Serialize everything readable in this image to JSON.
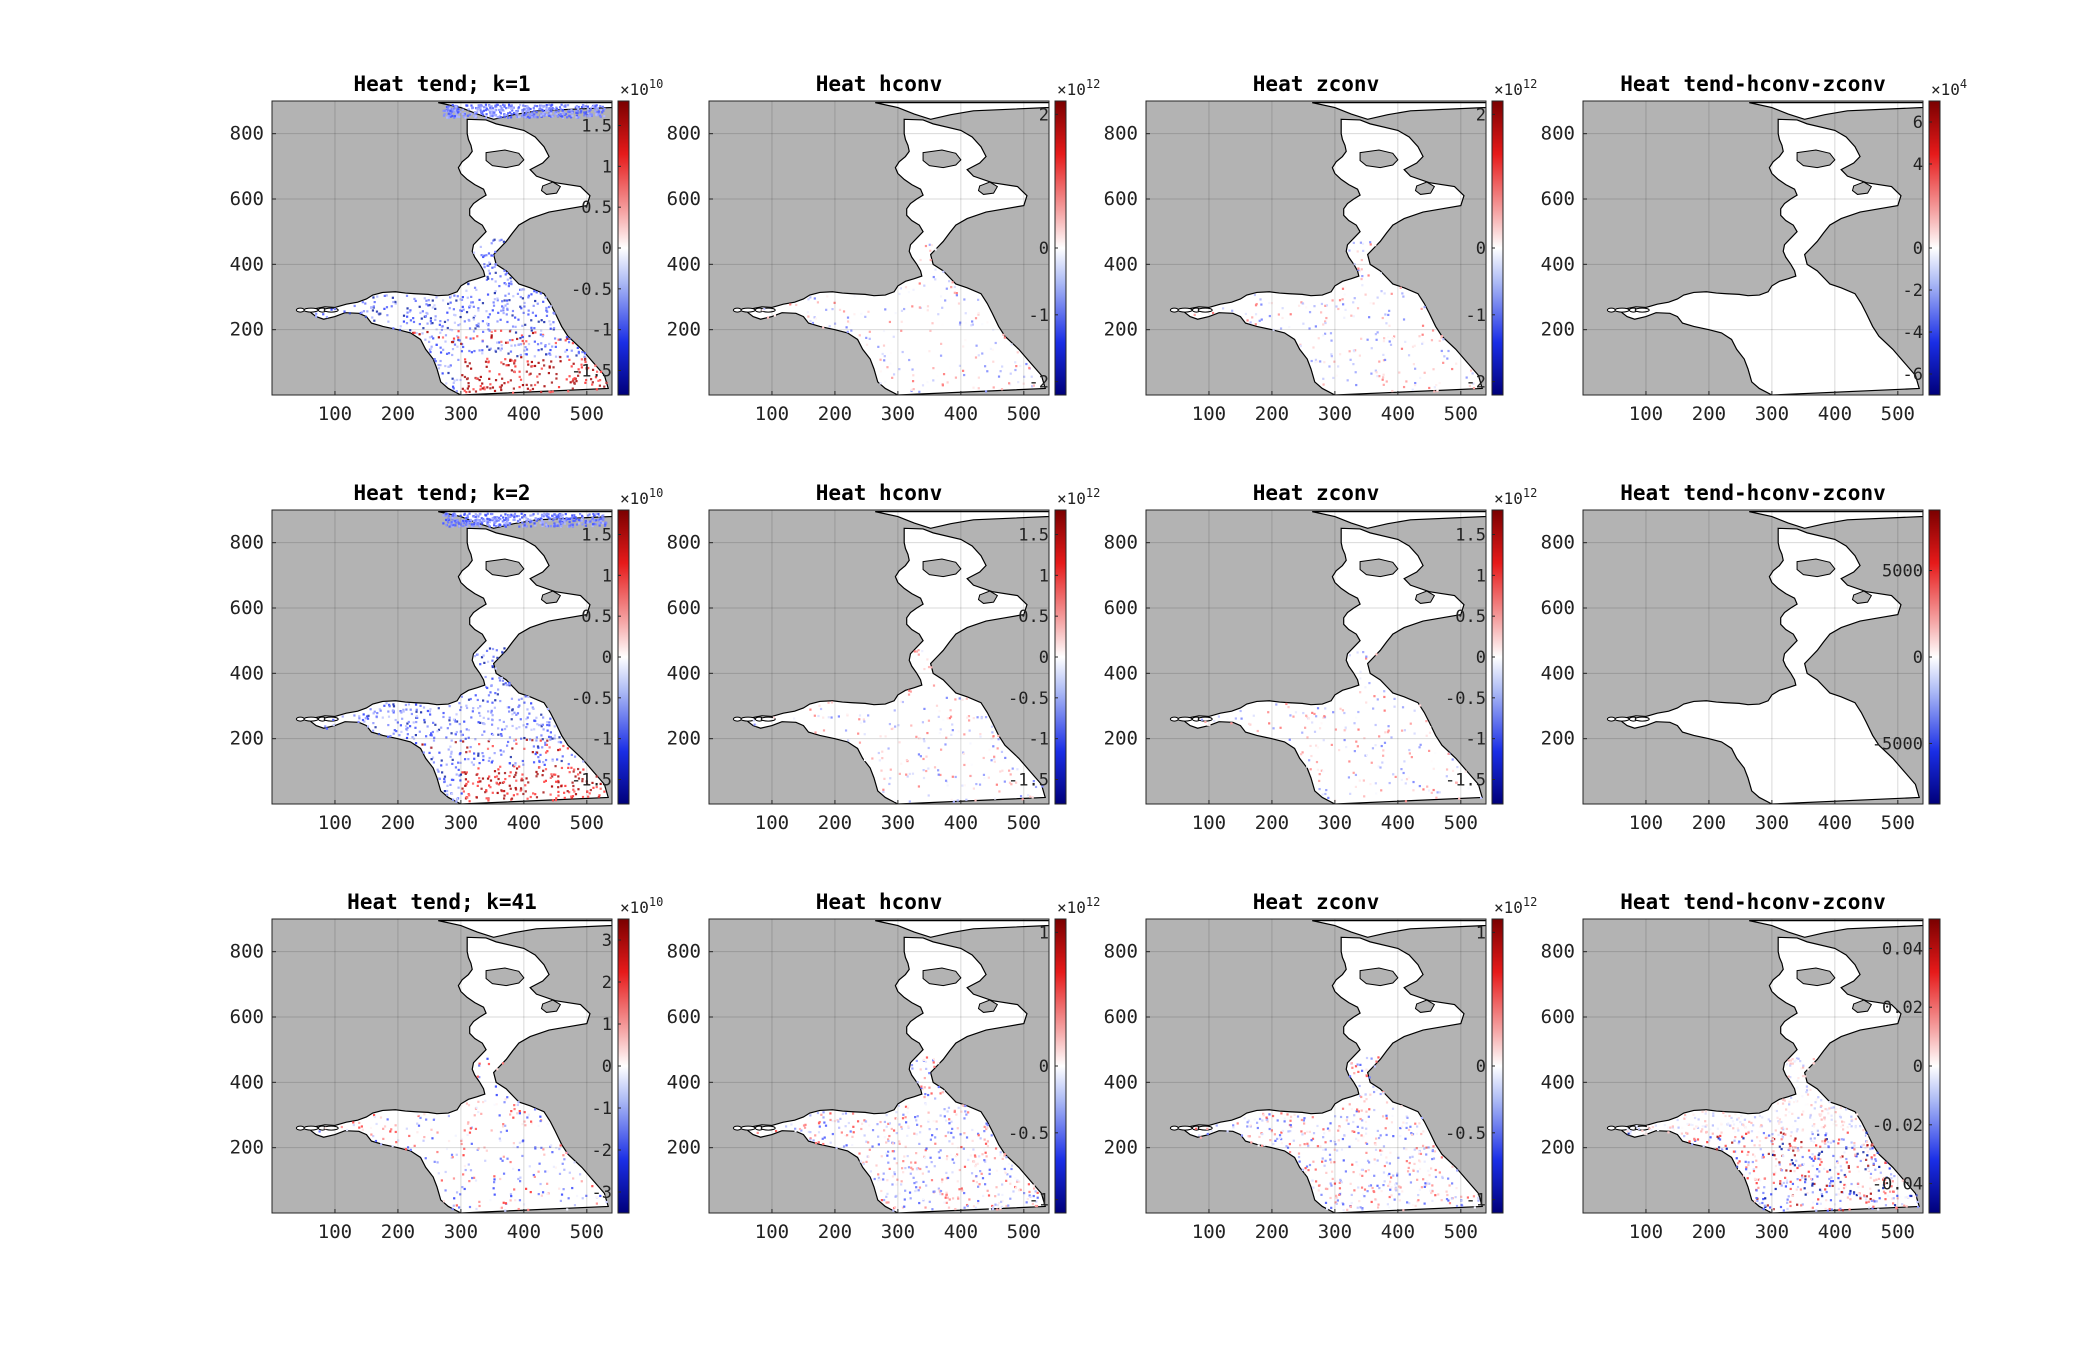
{
  "chart_data": [
    {
      "type": "heatmap",
      "title": "Heat tend; k=1",
      "xticks": [
        100,
        200,
        300,
        400,
        500
      ],
      "yticks": [
        200,
        400,
        600,
        800
      ],
      "xlim": [
        1,
        540
      ],
      "ylim": [
        1,
        900
      ],
      "colorbar": {
        "ticks": [
          "1.5",
          "1",
          "0.5",
          "0",
          "-0.5",
          "-1",
          "-1.5"
        ],
        "values": [
          1.5,
          1,
          0.5,
          0,
          -0.5,
          -1,
          -1.5
        ],
        "range": [
          -1.8,
          1.8
        ],
        "exponent_base": "×10",
        "exponent": "10"
      },
      "colormap": "blue-white-red",
      "pattern": "strong",
      "background": "gray"
    },
    {
      "type": "heatmap",
      "title": "Heat hconv",
      "xticks": [
        100,
        200,
        300,
        400,
        500
      ],
      "yticks": [
        200,
        400,
        600,
        800
      ],
      "xlim": [
        1,
        540
      ],
      "ylim": [
        1,
        900
      ],
      "colorbar": {
        "ticks": [
          "2",
          "0",
          "-1",
          "-2"
        ],
        "values": [
          2,
          0,
          -1,
          -2
        ],
        "range": [
          -2.2,
          2.2
        ],
        "exponent_base": "×10",
        "exponent": "12"
      },
      "colormap": "blue-white-red",
      "pattern": "faint",
      "background": "gray"
    },
    {
      "type": "heatmap",
      "title": "Heat zconv",
      "xticks": [
        100,
        200,
        300,
        400,
        500
      ],
      "yticks": [
        200,
        400,
        600,
        800
      ],
      "xlim": [
        1,
        540
      ],
      "ylim": [
        1,
        900
      ],
      "colorbar": {
        "ticks": [
          "2",
          "0",
          "-1",
          "-2"
        ],
        "values": [
          2,
          0,
          -1,
          -2
        ],
        "range": [
          -2.2,
          2.2
        ],
        "exponent_base": "×10",
        "exponent": "12"
      },
      "colormap": "blue-white-red",
      "pattern": "faint",
      "background": "gray"
    },
    {
      "type": "heatmap",
      "title": "Heat tend-hconv-zconv",
      "xticks": [
        100,
        200,
        300,
        400,
        500
      ],
      "yticks": [
        200,
        400,
        600,
        800
      ],
      "xlim": [
        1,
        540
      ],
      "ylim": [
        1,
        900
      ],
      "colorbar": {
        "ticks": [
          "6",
          "4",
          "0",
          "-2",
          "-4",
          "-6"
        ],
        "values": [
          6,
          4,
          0,
          -2,
          -4,
          -6
        ],
        "range": [
          -7,
          7
        ],
        "exponent_base": "×10",
        "exponent": "4"
      },
      "colormap": "blue-white-red",
      "pattern": "none",
      "background": "gray"
    },
    {
      "type": "heatmap",
      "title": "Heat tend; k=2",
      "xticks": [
        100,
        200,
        300,
        400,
        500
      ],
      "yticks": [
        200,
        400,
        600,
        800
      ],
      "xlim": [
        1,
        540
      ],
      "ylim": [
        1,
        900
      ],
      "colorbar": {
        "ticks": [
          "1.5",
          "1",
          "0.5",
          "0",
          "-0.5",
          "-1",
          "-1.5"
        ],
        "values": [
          1.5,
          1,
          0.5,
          0,
          -0.5,
          -1,
          -1.5
        ],
        "range": [
          -1.8,
          1.8
        ],
        "exponent_base": "×10",
        "exponent": "10"
      },
      "colormap": "blue-white-red",
      "pattern": "strong",
      "background": "gray"
    },
    {
      "type": "heatmap",
      "title": "Heat hconv",
      "xticks": [
        100,
        200,
        300,
        400,
        500
      ],
      "yticks": [
        200,
        400,
        600,
        800
      ],
      "xlim": [
        1,
        540
      ],
      "ylim": [
        1,
        900
      ],
      "colorbar": {
        "ticks": [
          "1.5",
          "1",
          "0.5",
          "0",
          "-0.5",
          "-1",
          "-1.5"
        ],
        "values": [
          1.5,
          1,
          0.5,
          0,
          -0.5,
          -1,
          -1.5
        ],
        "range": [
          -1.8,
          1.8
        ],
        "exponent_base": "×10",
        "exponent": "12"
      },
      "colormap": "blue-white-red",
      "pattern": "faint",
      "background": "gray"
    },
    {
      "type": "heatmap",
      "title": "Heat zconv",
      "xticks": [
        100,
        200,
        300,
        400,
        500
      ],
      "yticks": [
        200,
        400,
        600,
        800
      ],
      "xlim": [
        1,
        540
      ],
      "ylim": [
        1,
        900
      ],
      "colorbar": {
        "ticks": [
          "1.5",
          "1",
          "0.5",
          "0",
          "-0.5",
          "-1",
          "-1.5"
        ],
        "values": [
          1.5,
          1,
          0.5,
          0,
          -0.5,
          -1,
          -1.5
        ],
        "range": [
          -1.8,
          1.8
        ],
        "exponent_base": "×10",
        "exponent": "12"
      },
      "colormap": "blue-white-red",
      "pattern": "faint",
      "background": "gray"
    },
    {
      "type": "heatmap",
      "title": "Heat tend-hconv-zconv",
      "xticks": [
        100,
        200,
        300,
        400,
        500
      ],
      "yticks": [
        200,
        400,
        600,
        800
      ],
      "xlim": [
        1,
        540
      ],
      "ylim": [
        1,
        900
      ],
      "colorbar": {
        "ticks": [
          "5000",
          "0",
          "-5000"
        ],
        "values": [
          5000,
          0,
          -5000
        ],
        "range": [
          -8500,
          8500
        ],
        "exponent_base": "",
        "exponent": ""
      },
      "colormap": "blue-white-red",
      "pattern": "none",
      "background": "gray"
    },
    {
      "type": "heatmap",
      "title": "Heat tend; k=41",
      "xticks": [
        100,
        200,
        300,
        400,
        500
      ],
      "yticks": [
        200,
        400,
        600,
        800
      ],
      "xlim": [
        1,
        540
      ],
      "ylim": [
        1,
        900
      ],
      "colorbar": {
        "ticks": [
          "3",
          "2",
          "1",
          "0",
          "-1",
          "-2",
          "-3"
        ],
        "values": [
          3,
          2,
          1,
          0,
          -1,
          -2,
          -3
        ],
        "range": [
          -3.5,
          3.5
        ],
        "exponent_base": "×10",
        "exponent": "10"
      },
      "colormap": "blue-white-red",
      "pattern": "medium",
      "background": "gray"
    },
    {
      "type": "heatmap",
      "title": "Heat hconv",
      "xticks": [
        100,
        200,
        300,
        400,
        500
      ],
      "yticks": [
        200,
        400,
        600,
        800
      ],
      "xlim": [
        1,
        540
      ],
      "ylim": [
        1,
        900
      ],
      "colorbar": {
        "ticks": [
          "1",
          "0",
          "-0.5",
          "-1"
        ],
        "values": [
          1,
          0,
          -0.5,
          -1
        ],
        "range": [
          -1.1,
          1.1
        ],
        "exponent_base": "×10",
        "exponent": "12"
      },
      "colormap": "blue-white-red",
      "pattern": "noisy",
      "background": "gray"
    },
    {
      "type": "heatmap",
      "title": "Heat zconv",
      "xticks": [
        100,
        200,
        300,
        400,
        500
      ],
      "yticks": [
        200,
        400,
        600,
        800
      ],
      "xlim": [
        1,
        540
      ],
      "ylim": [
        1,
        900
      ],
      "colorbar": {
        "ticks": [
          "1",
          "0",
          "-0.5",
          "-1"
        ],
        "values": [
          1,
          0,
          -0.5,
          -1
        ],
        "range": [
          -1.1,
          1.1
        ],
        "exponent_base": "×10",
        "exponent": "12"
      },
      "colormap": "blue-white-red",
      "pattern": "noisy",
      "background": "gray"
    },
    {
      "type": "heatmap",
      "title": "Heat tend-hconv-zconv",
      "xticks": [
        100,
        200,
        300,
        400,
        500
      ],
      "yticks": [
        200,
        400,
        600,
        800
      ],
      "xlim": [
        1,
        540
      ],
      "ylim": [
        1,
        900
      ],
      "colorbar": {
        "ticks": [
          "0.04",
          "0.02",
          "0",
          "-0.02",
          "-0.04"
        ],
        "values": [
          0.04,
          0.02,
          0,
          -0.02,
          -0.04
        ],
        "range": [
          -0.05,
          0.05
        ],
        "exponent_base": "",
        "exponent": ""
      },
      "colormap": "blue-white-red",
      "pattern": "very-noisy",
      "background": "gray"
    }
  ]
}
